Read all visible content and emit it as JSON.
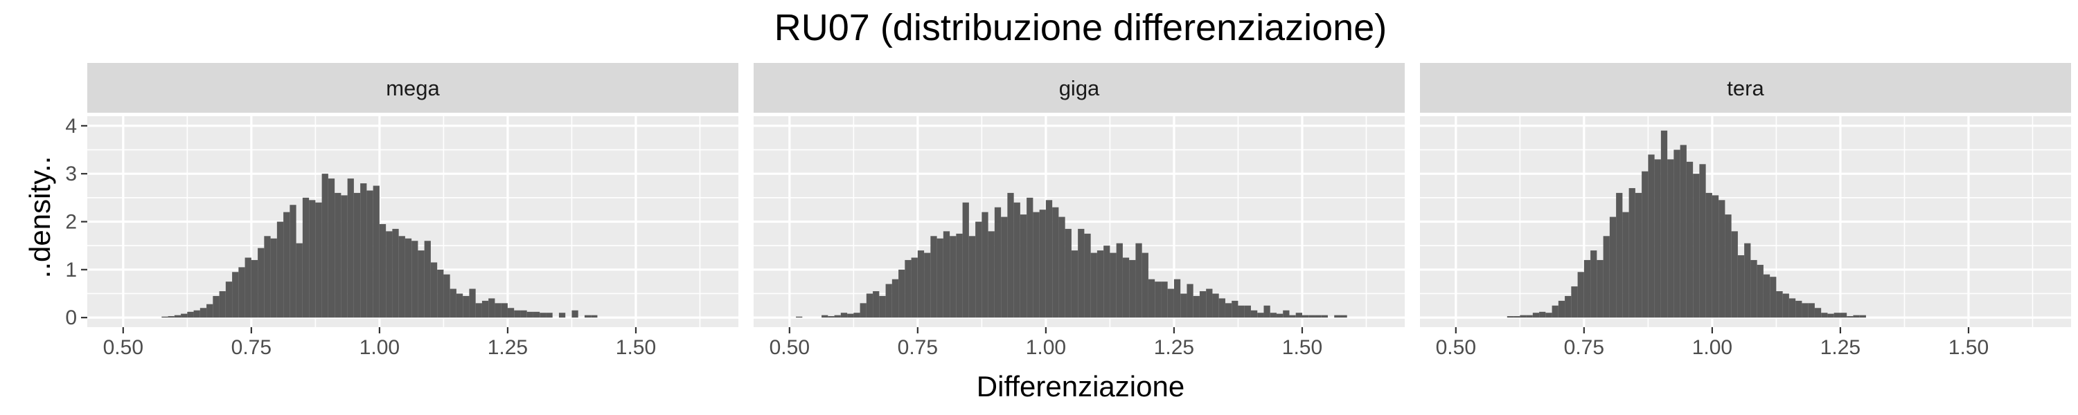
{
  "chart_data": {
    "type": "histogram",
    "title": "RU07 (distribuzione differenziazione)",
    "xlabel": "Differenziazione",
    "ylabel": "..density..",
    "xlim": [
      0.43,
      1.7
    ],
    "ylim": [
      -0.2,
      4.2
    ],
    "x_ticks": [
      0.5,
      0.75,
      1.0,
      1.25,
      1.5
    ],
    "x_tick_labels": [
      "0.50",
      "0.75",
      "1.00",
      "1.25",
      "1.50"
    ],
    "y_ticks": [
      0,
      1,
      2,
      3,
      4
    ],
    "y_tick_labels": [
      "0",
      "1",
      "2",
      "3",
      "4"
    ],
    "grid": true,
    "bin_start": 0.5,
    "bin_width": 0.0125,
    "bar_color": "#595959",
    "panel_background": "#ebebeb",
    "strip_background": "#d9d9d9",
    "grid_color": "#ffffff",
    "facets": [
      {
        "name": "mega",
        "density": [
          0,
          0,
          0,
          0,
          0,
          0,
          0.02,
          0.03,
          0.05,
          0.08,
          0.12,
          0.15,
          0.2,
          0.28,
          0.45,
          0.55,
          0.75,
          0.95,
          1.05,
          1.25,
          1.2,
          1.45,
          1.7,
          1.65,
          2.0,
          2.2,
          2.35,
          1.55,
          2.5,
          2.45,
          2.4,
          3.0,
          2.9,
          2.6,
          2.55,
          2.9,
          2.6,
          2.8,
          2.65,
          2.75,
          1.95,
          1.8,
          1.85,
          1.7,
          1.65,
          1.6,
          1.4,
          1.6,
          1.15,
          1.0,
          0.9,
          0.6,
          0.5,
          0.45,
          0.6,
          0.3,
          0.35,
          0.4,
          0.3,
          0.3,
          0.2,
          0.15,
          0.15,
          0.12,
          0.12,
          0.1,
          0.1,
          0,
          0.1,
          0,
          0.15,
          0,
          0.05,
          0.05,
          0,
          0,
          0,
          0,
          0,
          0,
          0,
          0,
          0,
          0,
          0,
          0,
          0,
          0,
          0,
          0
        ]
      },
      {
        "name": "giga",
        "density": [
          0,
          0.02,
          0,
          0,
          0,
          0.05,
          0.03,
          0.05,
          0.1,
          0.08,
          0.1,
          0.3,
          0.5,
          0.55,
          0.45,
          0.7,
          0.8,
          1.0,
          1.2,
          1.25,
          1.4,
          1.35,
          1.7,
          1.65,
          1.8,
          1.7,
          1.75,
          2.4,
          1.7,
          2.0,
          2.2,
          1.8,
          2.3,
          2.1,
          2.6,
          2.4,
          2.15,
          2.5,
          2.2,
          2.25,
          2.45,
          2.3,
          2.1,
          1.85,
          1.4,
          1.85,
          1.75,
          1.35,
          1.4,
          1.5,
          1.35,
          1.55,
          1.25,
          1.2,
          1.55,
          1.35,
          0.8,
          0.75,
          0.75,
          0.6,
          0.8,
          0.5,
          0.7,
          0.45,
          0.55,
          0.6,
          0.5,
          0.4,
          0.3,
          0.35,
          0.25,
          0.25,
          0.15,
          0.1,
          0.25,
          0.1,
          0.08,
          0.15,
          0.05,
          0.1,
          0.05,
          0.05,
          0.05,
          0.05,
          0,
          0.05,
          0.05,
          0,
          0,
          0
        ]
      },
      {
        "name": "tera",
        "density": [
          0,
          0,
          0,
          0,
          0,
          0,
          0,
          0,
          0.03,
          0.03,
          0.05,
          0.05,
          0.1,
          0.12,
          0.1,
          0.25,
          0.35,
          0.45,
          0.65,
          0.95,
          1.2,
          1.4,
          1.2,
          1.7,
          2.1,
          2.6,
          2.2,
          2.7,
          2.6,
          3.05,
          3.4,
          3.3,
          3.9,
          3.3,
          3.5,
          3.6,
          3.25,
          3.0,
          3.2,
          2.6,
          2.55,
          2.45,
          2.15,
          1.8,
          1.3,
          1.55,
          1.2,
          1.1,
          0.9,
          0.85,
          0.55,
          0.5,
          0.4,
          0.35,
          0.3,
          0.3,
          0.2,
          0.1,
          0.08,
          0.1,
          0.1,
          0.03,
          0.05,
          0.05,
          0,
          0,
          0,
          0,
          0,
          0,
          0,
          0,
          0,
          0,
          0,
          0,
          0,
          0,
          0,
          0,
          0,
          0,
          0,
          0,
          0,
          0,
          0,
          0,
          0,
          0
        ]
      }
    ]
  }
}
